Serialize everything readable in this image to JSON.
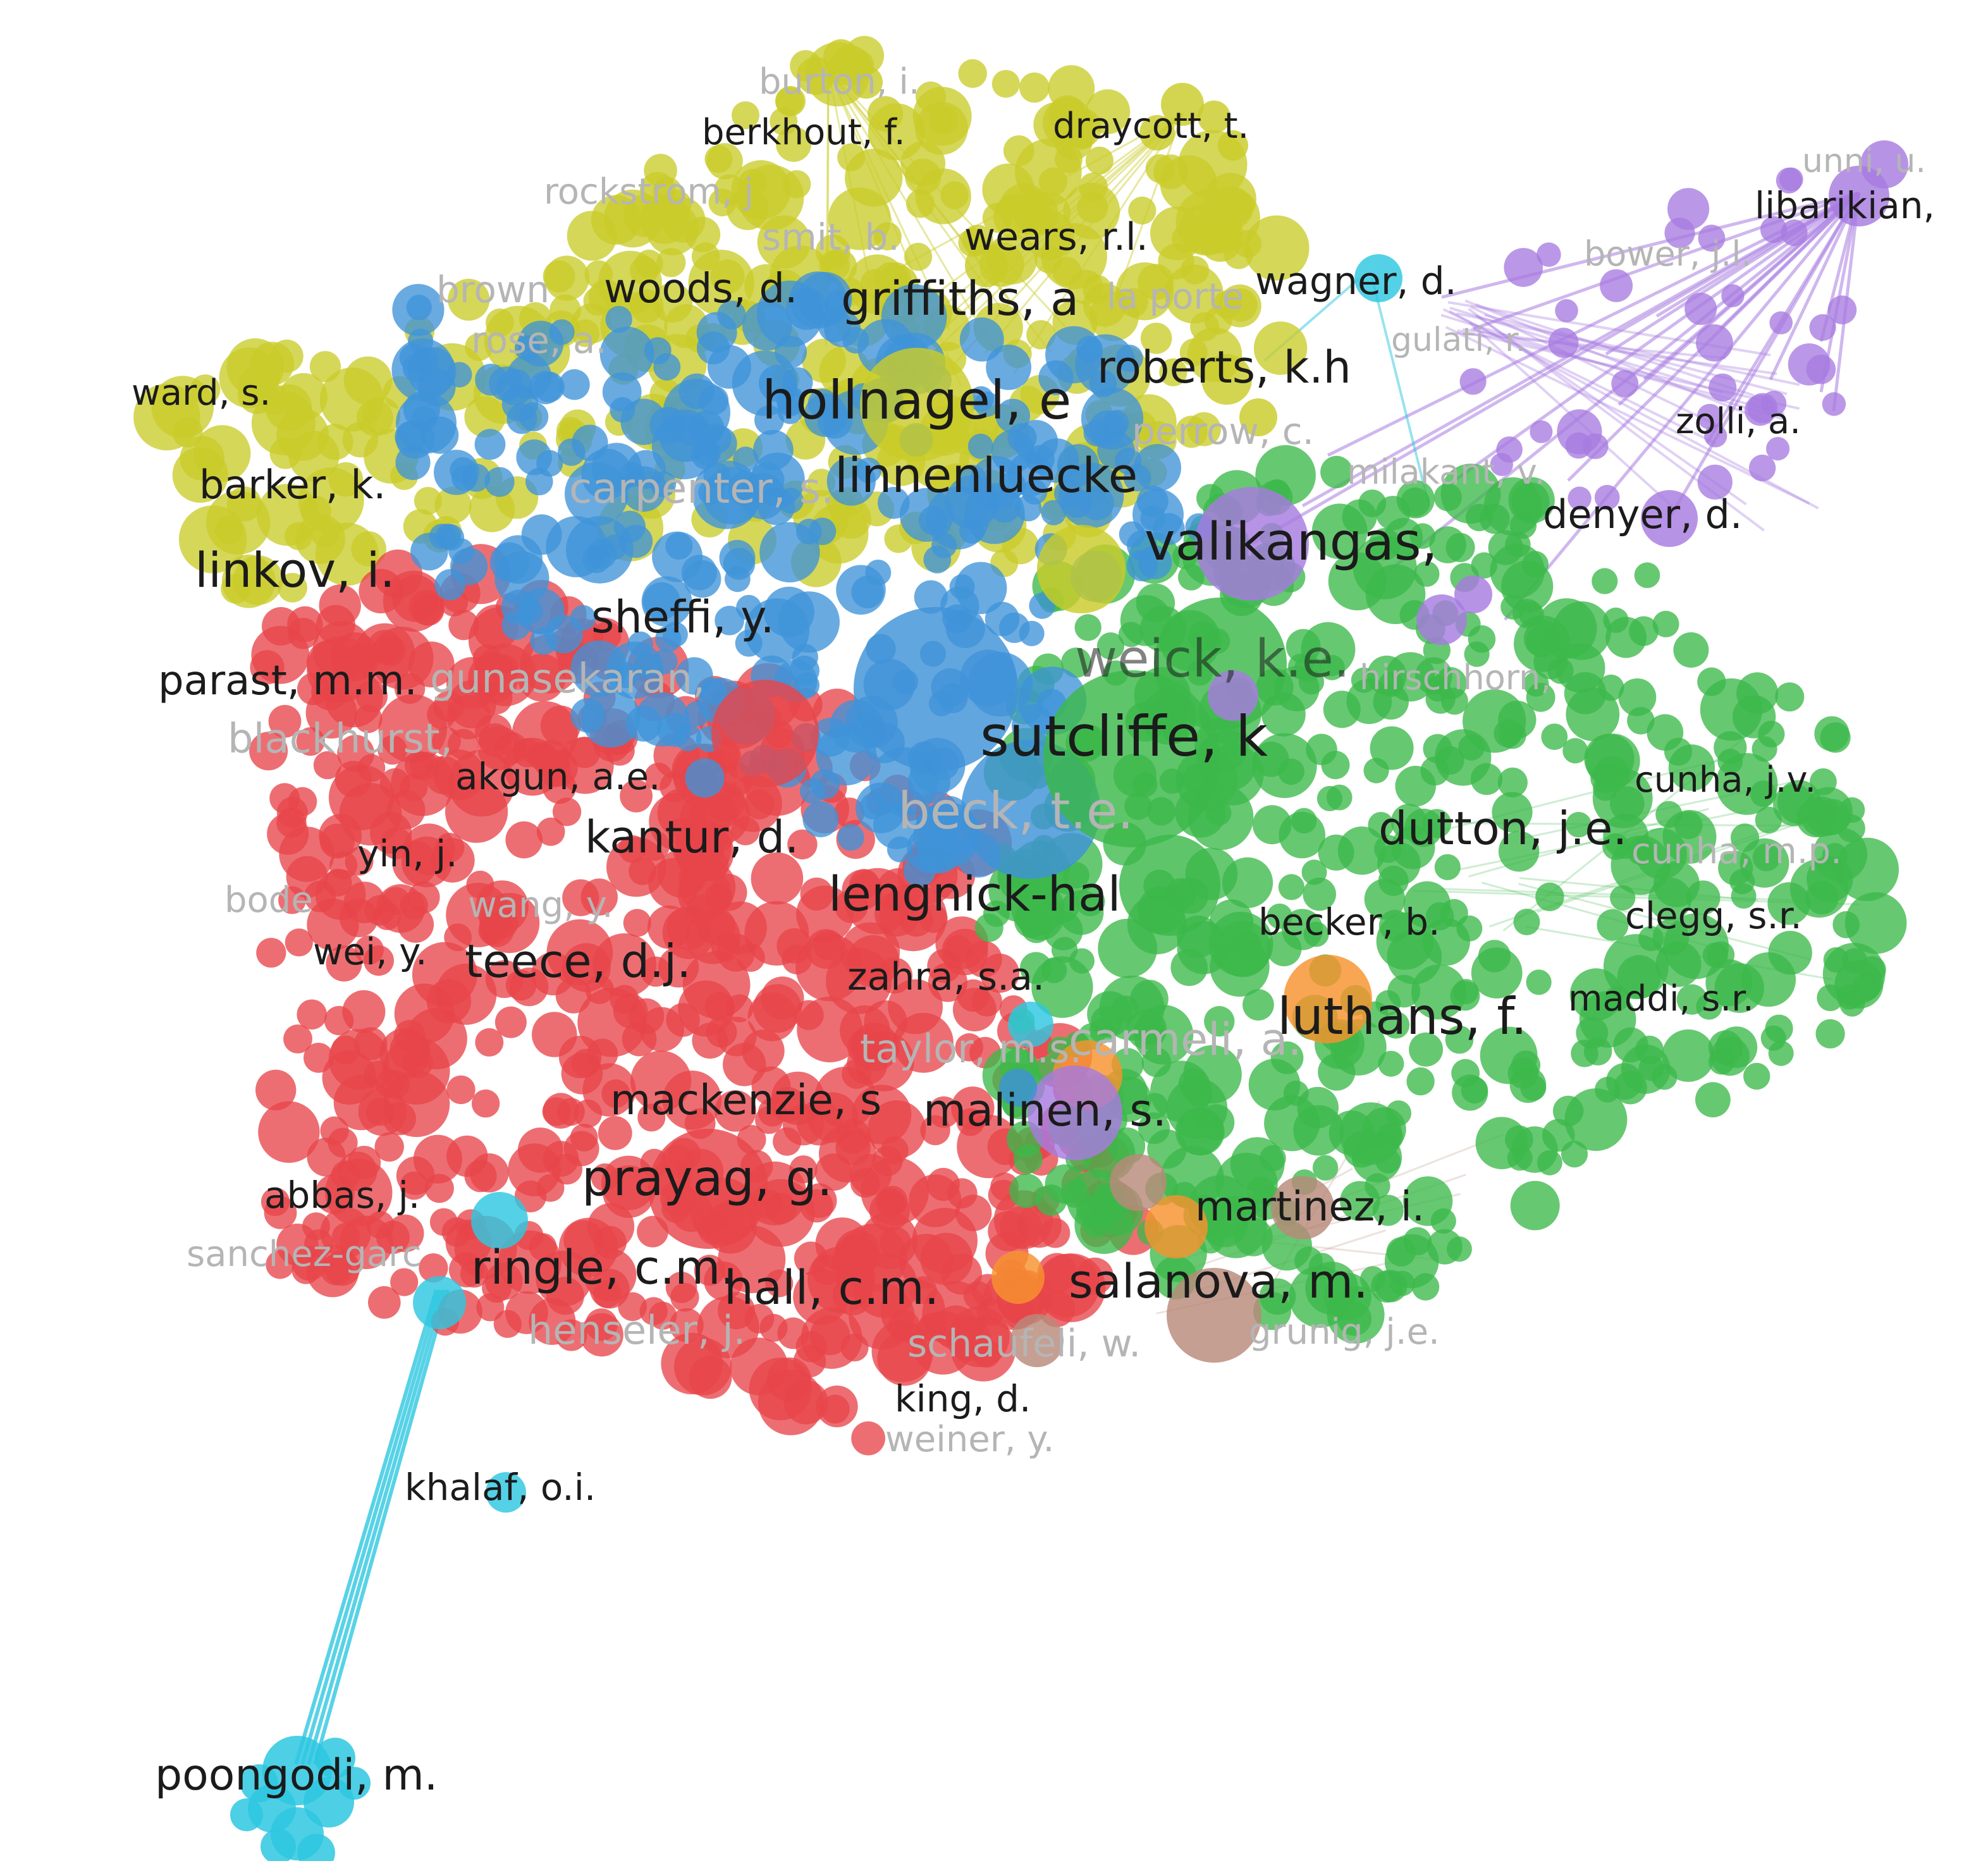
{
  "colors": {
    "cluster_red": "#e8454a",
    "cluster_green": "#3cb84a",
    "cluster_blue": "#3f93d8",
    "cluster_yellow": "#c9cc2a",
    "cluster_purple": "#a77be0",
    "cluster_cyan": "#2ec7e0",
    "cluster_orange": "#f7922e",
    "cluster_brown": "#b88a7a",
    "label_dark": "#1b1b1b",
    "label_faded": "#b5b5b5"
  },
  "labels": {
    "burton": "burton, i.",
    "berkhout": "berkhout, f.",
    "draycott": "draycott, t.",
    "unni": "unni, u.",
    "libarikian": "libarikian,",
    "rockstrom": "rockstrom, j",
    "smit": "smit, b.",
    "wears": "wears, r.l.",
    "bower": "bower, j.l.",
    "brown": "brown",
    "woods": "woods, d.",
    "griffiths": "griffiths, a",
    "la_porte": "la porte",
    "wagner": "wagner, d.",
    "gulati": "gulati, r.",
    "rose": "rose, a.",
    "ward": "ward, s.",
    "roberts": "roberts, k.h",
    "hollnagel": "hollnagel, e",
    "zolli": "zolli, a.",
    "perrow": "perrow, c.",
    "barker": "barker, k.",
    "carpenter": "carpenter, s.",
    "linnenluecke": "linnenluecke",
    "milakant": "milakant, v.",
    "denyer": "denyer, d.",
    "valikangas": "valikangas,",
    "linkov": "linkov, i.",
    "sheffi": "sheffi, y.",
    "weick": "weick, k.e.",
    "hirschhorn": "hirschhorn,",
    "parast": "parast, m.m.",
    "gunasekaran": "gunasekaran,",
    "blackhurst": "blackhurst,",
    "sutcliffe": "sutcliffe, k",
    "akgun": "akgun, a.e.",
    "cunha_jv": "cunha, j.v.",
    "beck": "beck, t.e.",
    "dutton": "dutton, j.e.",
    "kantur": "kantur, d.",
    "cunha_mp": "cunha, m.p.",
    "yin": "yin, j.",
    "wang": "wang, y.",
    "bode": "bode",
    "lengnick": "lengnick-hal",
    "clegg": "clegg, s.r.",
    "becker": "becker, b.",
    "wei": "wei, y.",
    "teece": "teece, d.j.",
    "zahra": "zahra, s.a.",
    "luthans": "luthans, f.",
    "maddi": "maddi, s.r.",
    "taylor": "taylor, m.s.",
    "carmeli": "carmeli, a.",
    "mackenzie": "mackenzie, s",
    "malinen": "malinen, s.",
    "abbas": "abbas, j.",
    "prayag": "prayag, g.",
    "martinez": "martinez, i.",
    "sanchez": "sanchez-garc",
    "ringle": "ringle, c.m.",
    "hall": "hall, c.m.",
    "salanova": "salanova, m.",
    "henseler": "henseler, j.",
    "schaufeli": "schaufeli, w.",
    "grunig": "grunig, j.e.",
    "king": "king, d.",
    "weiner": "weiner, y.",
    "khalaf": "khalaf, o.i.",
    "poongodi": "poongodi, m."
  }
}
